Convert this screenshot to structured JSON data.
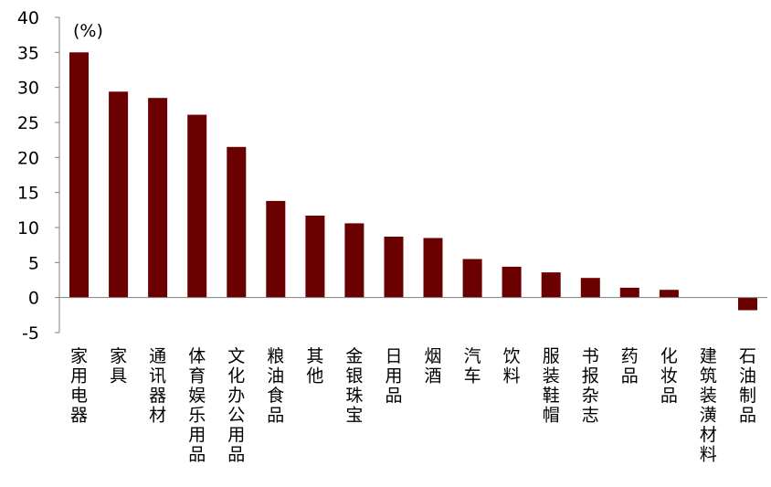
{
  "chart_data": {
    "type": "bar",
    "unit_label": "(%)",
    "categories": [
      "家用电器",
      "家具",
      "通讯器材",
      "体育娱乐用品",
      "文化办公用品",
      "粮油食品",
      "其他",
      "金银珠宝",
      "日用品",
      "烟酒",
      "汽车",
      "饮料",
      "服装鞋帽",
      "书报杂志",
      "药品",
      "化妆品",
      "建筑装潢材料",
      "石油制品"
    ],
    "values": [
      35.0,
      29.4,
      28.5,
      26.1,
      21.5,
      13.8,
      11.7,
      10.6,
      8.7,
      8.5,
      5.5,
      4.4,
      3.6,
      2.8,
      1.4,
      1.1,
      0.0,
      -1.8
    ],
    "ylim": [
      -5,
      40
    ],
    "yticks": [
      "40",
      "35",
      "30",
      "25",
      "20",
      "15",
      "10",
      "5",
      "0",
      "-5"
    ],
    "ytick_values": [
      40,
      35,
      30,
      25,
      20,
      15,
      10,
      5,
      0,
      -5
    ],
    "grid": false,
    "colors": {
      "bar": "#6B0000",
      "negative_tick": "#FF0000",
      "axis": "#808080"
    }
  }
}
